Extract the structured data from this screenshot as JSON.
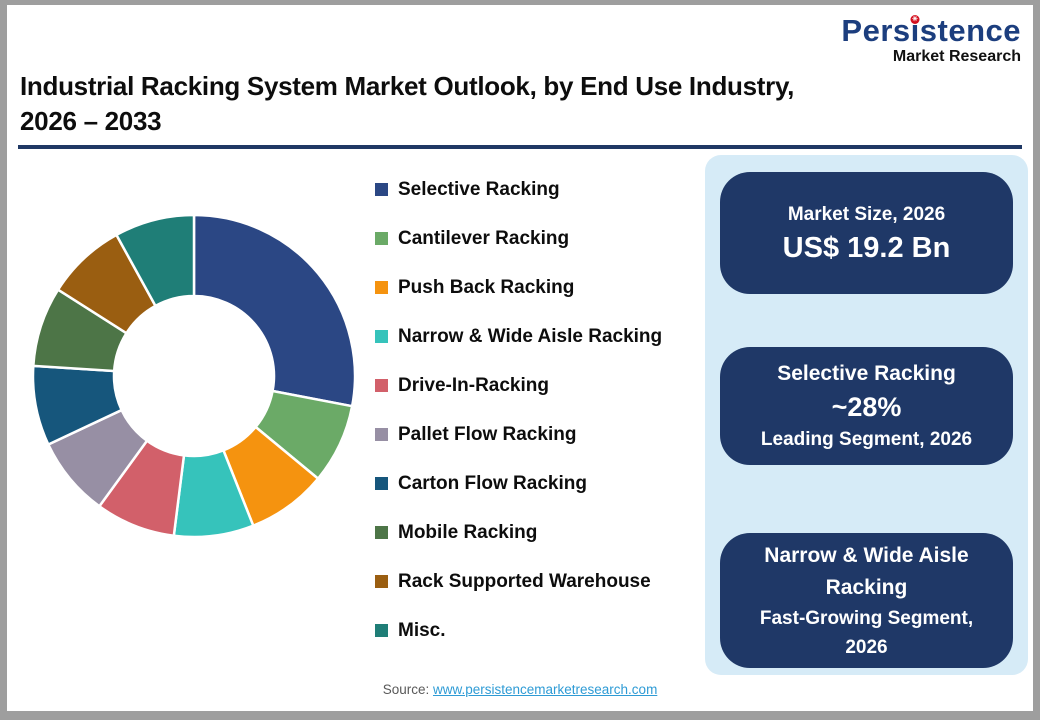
{
  "logo": {
    "brand": "Persistence",
    "subtitle": "Market Research"
  },
  "title": {
    "line1": "Industrial Racking System Market Outlook, by End Use Industry,",
    "line2": "2026 – 2033"
  },
  "chart_data": {
    "type": "pie",
    "donut": true,
    "inner_radius_ratio": 0.5,
    "start_angle_deg": 0,
    "direction": "clockwise",
    "title": "Industrial Racking System Market Outlook, by End Use Industry, 2026 – 2033",
    "legend_position": "right-of-chart",
    "categories": [
      "Selective Racking",
      "Cantilever Racking",
      "Push Back Racking",
      "Narrow & Wide Aisle Racking",
      "Drive-In-Racking",
      "Pallet Flow Racking",
      "Carton Flow Racking",
      "Mobile Racking",
      "Rack Supported Warehouse",
      "Misc."
    ],
    "values": [
      28,
      8,
      8,
      8,
      8,
      8,
      8,
      8,
      8,
      8
    ],
    "values_note": "Selective Racking labeled ~28% (2026); remaining segments estimated approximately equal",
    "colors": [
      "#2b4784",
      "#6baa67",
      "#f5930f",
      "#36c3bb",
      "#d2606a",
      "#978fa4",
      "#16567c",
      "#4d7547",
      "#9a5e11",
      "#1f7e77"
    ]
  },
  "panel": {
    "cards": [
      {
        "line1": "Market Size, 2026",
        "line2": "US$ 19.2 Bn"
      },
      {
        "line1": "Selective Racking",
        "line2": "~28%",
        "line3": "Leading Segment, 2026"
      },
      {
        "line1": "Narrow & Wide Aisle Racking",
        "line2": "Fast-Growing Segment, 2026"
      }
    ]
  },
  "footer": {
    "source_label": "Source:",
    "source_link": "www.persistencemarketresearch.com"
  },
  "colors": {
    "card_navy": "#1f3867",
    "panel_light_blue": "#d6ebf7",
    "title_rule_navy": "#1f3864",
    "logo_blue": "#1c3e7e",
    "logo_red": "#d40f1e",
    "link_blue": "#2e9bd5",
    "source_gray": "#595959",
    "frame_gray": "#9e9e9e"
  }
}
